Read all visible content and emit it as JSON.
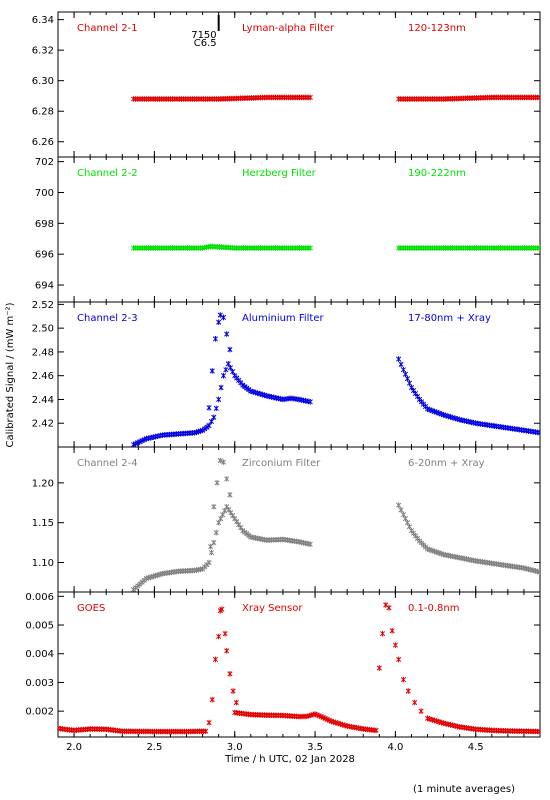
{
  "figure": {
    "ylabel": "Calibrated Signal / (mW m⁻²)",
    "xlabel": "Time / h UTC, 02 Jan 2028",
    "footnote": "(1 minute averages)",
    "event_marker": {
      "time": 2.9,
      "label_top": "7150",
      "label_bottom": "C6.5"
    }
  },
  "chart_data": [
    {
      "type": "scatter",
      "channel": "Channel 2-1",
      "filter": "Lyman-alpha Filter",
      "band": "120-123nm",
      "color": "#e00000",
      "xlim": [
        1.9,
        4.9
      ],
      "ylim": [
        6.25,
        6.345
      ],
      "yticks": [
        6.26,
        6.28,
        6.3,
        6.32,
        6.34
      ],
      "ytick_labels": [
        "6.26",
        "6.28",
        "6.30",
        "6.32",
        "6.34"
      ],
      "segments": [
        {
          "x": [
            2.37,
            2.6,
            2.9,
            3.2,
            3.47
          ],
          "y": [
            6.288,
            6.288,
            6.288,
            6.289,
            6.289
          ]
        },
        {
          "x": [
            4.02,
            4.3,
            4.6,
            4.9
          ],
          "y": [
            6.288,
            6.288,
            6.289,
            6.289
          ]
        }
      ]
    },
    {
      "type": "scatter",
      "channel": "Channel 2-2",
      "filter": "Herzberg Filter",
      "band": "190-222nm",
      "color": "#00e000",
      "xlim": [
        1.9,
        4.9
      ],
      "ylim": [
        692.9,
        702.3
      ],
      "yticks": [
        694,
        696,
        698,
        700,
        702
      ],
      "ytick_labels": [
        "694",
        "696",
        "698",
        "700",
        "702"
      ],
      "segments": [
        {
          "x": [
            2.37,
            2.6,
            2.8,
            2.85,
            3.0,
            3.2,
            3.47
          ],
          "y": [
            696.4,
            696.4,
            696.4,
            696.5,
            696.4,
            696.4,
            696.4
          ]
        },
        {
          "x": [
            4.02,
            4.3,
            4.6,
            4.9
          ],
          "y": [
            696.4,
            696.4,
            696.4,
            696.4
          ]
        }
      ]
    },
    {
      "type": "scatter",
      "channel": "Channel 2-3",
      "filter": "Aluminium Filter",
      "band": "17-80nm + Xray",
      "color": "#0000e0",
      "xlim": [
        1.9,
        4.9
      ],
      "ylim": [
        2.4,
        2.522
      ],
      "yticks": [
        2.42,
        2.44,
        2.46,
        2.48,
        2.5,
        2.52
      ],
      "ytick_labels": [
        "2.42",
        "2.44",
        "2.46",
        "2.48",
        "2.50",
        "2.52"
      ],
      "segments": [
        {
          "x": [
            2.37,
            2.45,
            2.55,
            2.65,
            2.75,
            2.8,
            2.84,
            2.87,
            2.9,
            2.93,
            2.96,
            3.0,
            3.05,
            3.1,
            3.2,
            3.3,
            3.35,
            3.4,
            3.47
          ],
          "y": [
            2.402,
            2.407,
            2.41,
            2.411,
            2.412,
            2.414,
            2.418,
            2.425,
            2.44,
            2.46,
            2.47,
            2.46,
            2.452,
            2.447,
            2.443,
            2.44,
            2.441,
            2.44,
            2.438
          ]
        },
        {
          "x": [
            4.02,
            4.05,
            4.1,
            4.15,
            4.2,
            4.3,
            4.4,
            4.5,
            4.6,
            4.7,
            4.8,
            4.9
          ],
          "y": [
            2.474,
            2.465,
            2.45,
            2.44,
            2.432,
            2.427,
            2.423,
            2.42,
            2.418,
            2.416,
            2.414,
            2.412
          ]
        }
      ],
      "points": [
        {
          "x": 2.84,
          "y": 2.433
        },
        {
          "x": 2.86,
          "y": 2.464
        },
        {
          "x": 2.88,
          "y": 2.491
        },
        {
          "x": 2.9,
          "y": 2.505
        },
        {
          "x": 2.91,
          "y": 2.511
        },
        {
          "x": 2.93,
          "y": 2.509
        },
        {
          "x": 2.95,
          "y": 2.495
        },
        {
          "x": 2.97,
          "y": 2.482
        }
      ]
    },
    {
      "type": "scatter",
      "channel": "Channel 2-4",
      "filter": "Zirconium Filter",
      "band": "6-20nm + Xray",
      "color": "#808080",
      "xlim": [
        1.9,
        4.9
      ],
      "ylim": [
        1.063,
        1.245
      ],
      "yticks": [
        1.1,
        1.15,
        1.2
      ],
      "ytick_labels": [
        "1.10",
        "1.15",
        "1.20"
      ],
      "segments": [
        {
          "x": [
            2.37,
            2.45,
            2.55,
            2.65,
            2.75,
            2.8,
            2.84,
            2.9,
            2.95,
            3.0,
            3.05,
            3.1,
            3.2,
            3.3,
            3.4,
            3.47
          ],
          "y": [
            1.066,
            1.08,
            1.086,
            1.089,
            1.09,
            1.092,
            1.1,
            1.15,
            1.17,
            1.155,
            1.14,
            1.132,
            1.128,
            1.129,
            1.126,
            1.123
          ]
        },
        {
          "x": [
            4.02,
            4.05,
            4.1,
            4.15,
            4.2,
            4.3,
            4.4,
            4.5,
            4.6,
            4.7,
            4.8,
            4.9
          ],
          "y": [
            1.172,
            1.16,
            1.14,
            1.127,
            1.117,
            1.11,
            1.106,
            1.102,
            1.099,
            1.096,
            1.093,
            1.088
          ]
        }
      ],
      "points": [
        {
          "x": 2.85,
          "y": 1.12
        },
        {
          "x": 2.87,
          "y": 1.17
        },
        {
          "x": 2.89,
          "y": 1.2
        },
        {
          "x": 2.91,
          "y": 1.228
        },
        {
          "x": 2.93,
          "y": 1.226
        },
        {
          "x": 2.95,
          "y": 1.205
        },
        {
          "x": 2.97,
          "y": 1.185
        }
      ]
    },
    {
      "type": "scatter",
      "channel": "GOES",
      "filter": "Xray Sensor",
      "band": "0.1-0.8nm",
      "color": "#e00000",
      "xlim": [
        1.9,
        4.9
      ],
      "ylim": [
        0.0011,
        0.00615
      ],
      "yticks": [
        0.002,
        0.003,
        0.004,
        0.005,
        0.006
      ],
      "ytick_labels": [
        "0.002",
        "0.003",
        "0.004",
        "0.005",
        "0.006"
      ],
      "segments": [
        {
          "x": [
            1.9,
            2.0,
            2.1,
            2.2,
            2.3,
            2.5,
            2.7,
            2.82
          ],
          "y": [
            0.0014,
            0.00133,
            0.00138,
            0.00137,
            0.0013,
            0.00129,
            0.00129,
            0.0013
          ]
        },
        {
          "x": [
            3.0,
            3.1,
            3.2,
            3.3,
            3.4,
            3.45,
            3.5,
            3.55,
            3.6,
            3.7,
            3.8,
            3.88
          ],
          "y": [
            0.00195,
            0.00188,
            0.00186,
            0.00185,
            0.00181,
            0.00182,
            0.0019,
            0.00178,
            0.00165,
            0.00148,
            0.00138,
            0.00133
          ]
        },
        {
          "x": [
            4.2,
            4.3,
            4.4,
            4.5,
            4.6,
            4.7,
            4.8,
            4.9
          ],
          "y": [
            0.00175,
            0.00158,
            0.00145,
            0.00137,
            0.00133,
            0.00131,
            0.0013,
            0.00129
          ]
        }
      ],
      "points": [
        {
          "x": 2.84,
          "y": 0.0016
        },
        {
          "x": 2.86,
          "y": 0.0024
        },
        {
          "x": 2.88,
          "y": 0.0038
        },
        {
          "x": 2.9,
          "y": 0.0046
        },
        {
          "x": 2.91,
          "y": 0.0055
        },
        {
          "x": 2.92,
          "y": 0.00555
        },
        {
          "x": 2.94,
          "y": 0.0047
        },
        {
          "x": 2.95,
          "y": 0.0041
        },
        {
          "x": 2.97,
          "y": 0.0033
        },
        {
          "x": 2.99,
          "y": 0.0027
        },
        {
          "x": 3.01,
          "y": 0.0023
        },
        {
          "x": 3.9,
          "y": 0.0035
        },
        {
          "x": 3.92,
          "y": 0.0047
        },
        {
          "x": 3.94,
          "y": 0.0057
        },
        {
          "x": 3.96,
          "y": 0.0056
        },
        {
          "x": 3.98,
          "y": 0.0048
        },
        {
          "x": 4.0,
          "y": 0.0043
        },
        {
          "x": 4.02,
          "y": 0.0038
        },
        {
          "x": 4.05,
          "y": 0.0031
        },
        {
          "x": 4.08,
          "y": 0.0027
        },
        {
          "x": 4.12,
          "y": 0.0023
        },
        {
          "x": 4.16,
          "y": 0.002
        }
      ]
    }
  ],
  "xaxis": {
    "ticks": [
      2.0,
      2.5,
      3.0,
      3.5,
      4.0,
      4.5
    ],
    "tick_labels": [
      "2.0",
      "2.5",
      "3.0",
      "3.5",
      "4.0",
      "4.5"
    ]
  }
}
